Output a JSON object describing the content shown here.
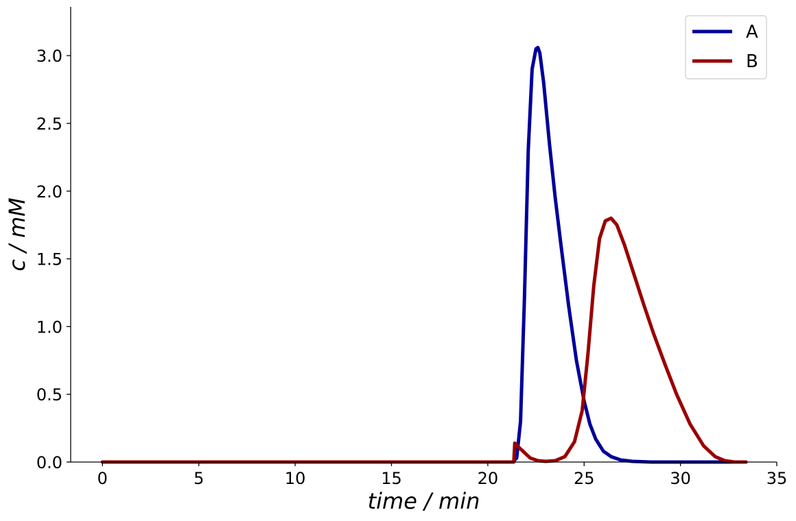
{
  "chart_data": {
    "type": "line",
    "title": "",
    "xlabel": "time / min",
    "ylabel": "c / mM",
    "xlim": [
      -1.65,
      35
    ],
    "ylim": [
      0,
      3.36
    ],
    "x_ticks": [
      0,
      5,
      10,
      15,
      20,
      25,
      30,
      35
    ],
    "x_tick_labels": [
      "0",
      "5",
      "10",
      "15",
      "20",
      "25",
      "30",
      "35"
    ],
    "y_ticks": [
      0.0,
      0.5,
      1.0,
      1.5,
      2.0,
      2.5,
      3.0
    ],
    "y_tick_labels": [
      "0.0",
      "0.5",
      "1.0",
      "1.5",
      "2.0",
      "2.5",
      "3.0"
    ],
    "grid": false,
    "legend": {
      "position": "top-right"
    },
    "series": [
      {
        "name": "A",
        "color": "#000099",
        "x": [
          0,
          21.3,
          21.5,
          21.7,
          21.9,
          22.1,
          22.3,
          22.5,
          22.6,
          22.7,
          22.9,
          23.2,
          23.5,
          23.8,
          24.2,
          24.6,
          25.0,
          25.3,
          25.6,
          26.0,
          26.4,
          26.9,
          27.5,
          28.5,
          29.5,
          33.4
        ],
        "y": [
          0,
          0,
          0.03,
          0.3,
          1.2,
          2.3,
          2.9,
          3.05,
          3.06,
          3.02,
          2.8,
          2.35,
          1.95,
          1.6,
          1.15,
          0.75,
          0.45,
          0.28,
          0.17,
          0.08,
          0.04,
          0.015,
          0.005,
          0,
          0,
          0
        ]
      },
      {
        "name": "B",
        "color": "#990000",
        "x": [
          0,
          21.3,
          21.35,
          21.4,
          21.6,
          21.9,
          22.2,
          22.6,
          23.0,
          23.5,
          24.0,
          24.5,
          24.9,
          25.2,
          25.5,
          25.8,
          26.1,
          26.4,
          26.7,
          27.1,
          27.6,
          28.1,
          28.6,
          29.2,
          29.8,
          30.5,
          31.2,
          31.8,
          32.3,
          32.8,
          33.4
        ],
        "y": [
          0,
          0,
          0.0,
          0.14,
          0.11,
          0.07,
          0.03,
          0.01,
          0.005,
          0.01,
          0.04,
          0.15,
          0.38,
          0.8,
          1.3,
          1.65,
          1.78,
          1.8,
          1.75,
          1.6,
          1.38,
          1.16,
          0.95,
          0.72,
          0.5,
          0.28,
          0.12,
          0.04,
          0.01,
          0,
          0
        ]
      }
    ]
  }
}
